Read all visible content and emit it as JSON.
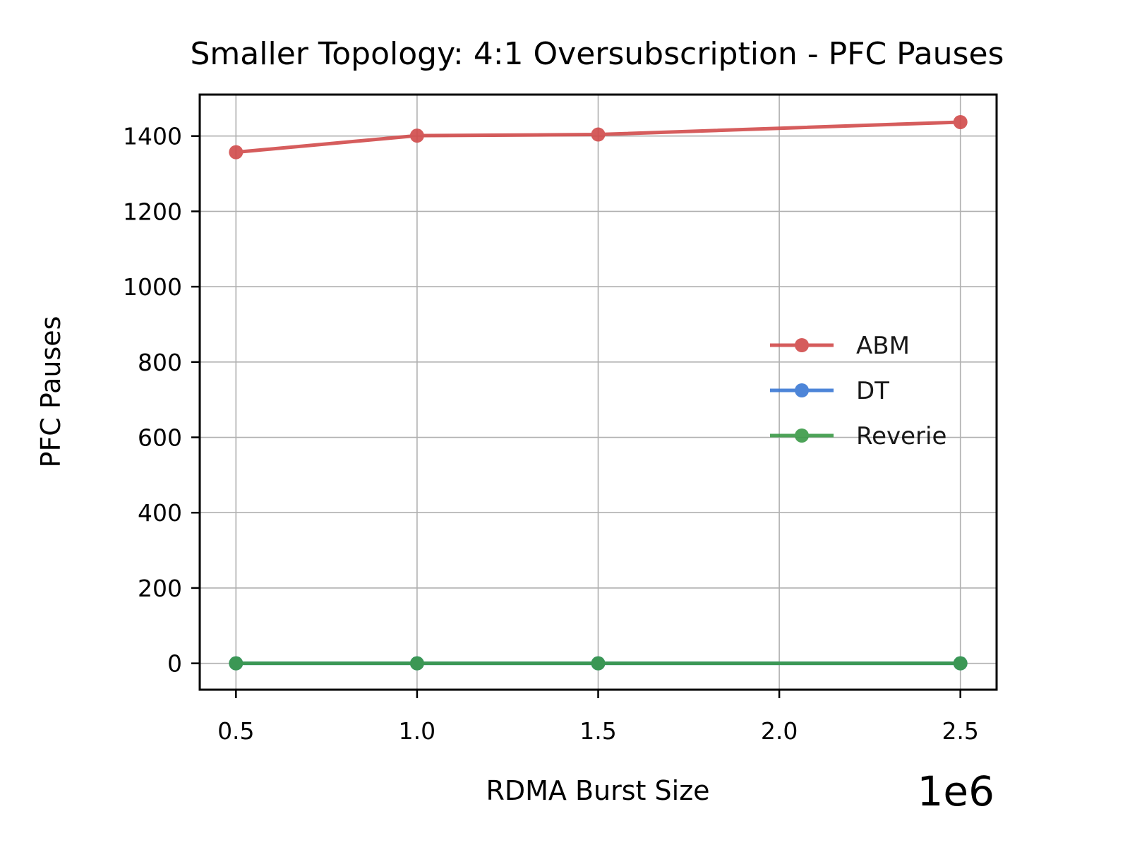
{
  "chart_data": {
    "type": "line",
    "title": "Smaller Topology: 4:1 Oversubscription - PFC Pauses",
    "xlabel": "RDMA Burst Size",
    "ylabel": "PFC Pauses",
    "x_offset_label": "1e6",
    "x": [
      500000,
      1000000,
      1500000,
      2500000
    ],
    "xlim": [
      400000,
      2600000
    ],
    "ylim": [
      -70,
      1510
    ],
    "x_ticks": [
      500000,
      1000000,
      1500000,
      2000000,
      2500000
    ],
    "x_tick_labels": [
      "0.5",
      "1.0",
      "1.5",
      "2.0",
      "2.5"
    ],
    "y_ticks": [
      0,
      200,
      400,
      600,
      800,
      1000,
      1200,
      1400
    ],
    "y_tick_labels": [
      "0",
      "200",
      "400",
      "600",
      "800",
      "1000",
      "1200",
      "1400"
    ],
    "grid": true,
    "legend_position": "center-right",
    "series": [
      {
        "name": "ABM",
        "color": "#d14b4b",
        "values": [
          1357,
          1401,
          1404,
          1437
        ]
      },
      {
        "name": "DT",
        "color": "#3a78d4",
        "values": [
          0,
          0,
          0,
          0
        ]
      },
      {
        "name": "Reverie",
        "color": "#3a9a47",
        "values": [
          0,
          0,
          0,
          0
        ]
      }
    ]
  }
}
